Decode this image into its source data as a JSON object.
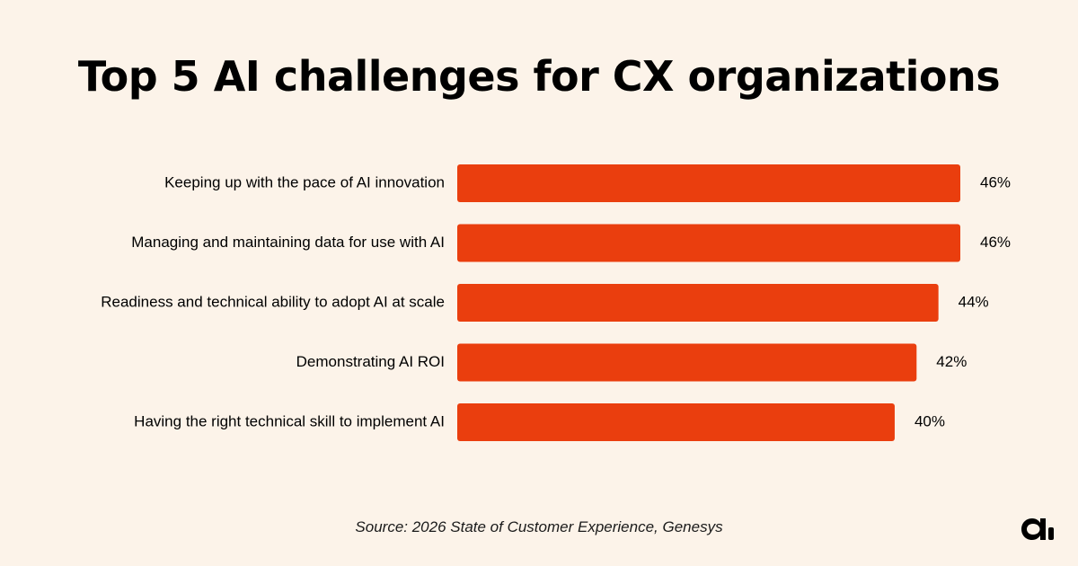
{
  "title": "Top 5 AI challenges for CX organizations",
  "source": "Source: 2026 State of Customer Experience, Genesys",
  "logo_icon": "brand-logo-icon",
  "colors": {
    "background": "#fcf3e9",
    "bar": "#ea3e0e",
    "text": "#000000"
  },
  "chart_data": {
    "type": "bar",
    "orientation": "horizontal",
    "title": "Top 5 AI challenges for CX organizations",
    "categories": [
      "Keeping up with the pace of AI innovation",
      "Managing and maintaining data for use with AI",
      "Readiness and technical ability to adopt AI at scale",
      "Demonstrating AI ROI",
      "Having the right technical skill to implement AI"
    ],
    "values": [
      46,
      46,
      44,
      42,
      40
    ],
    "value_labels": [
      "46%",
      "46%",
      "44%",
      "42%",
      "40%"
    ],
    "unit": "%",
    "xlim": [
      0,
      46
    ],
    "grid": false,
    "legend": "none"
  }
}
